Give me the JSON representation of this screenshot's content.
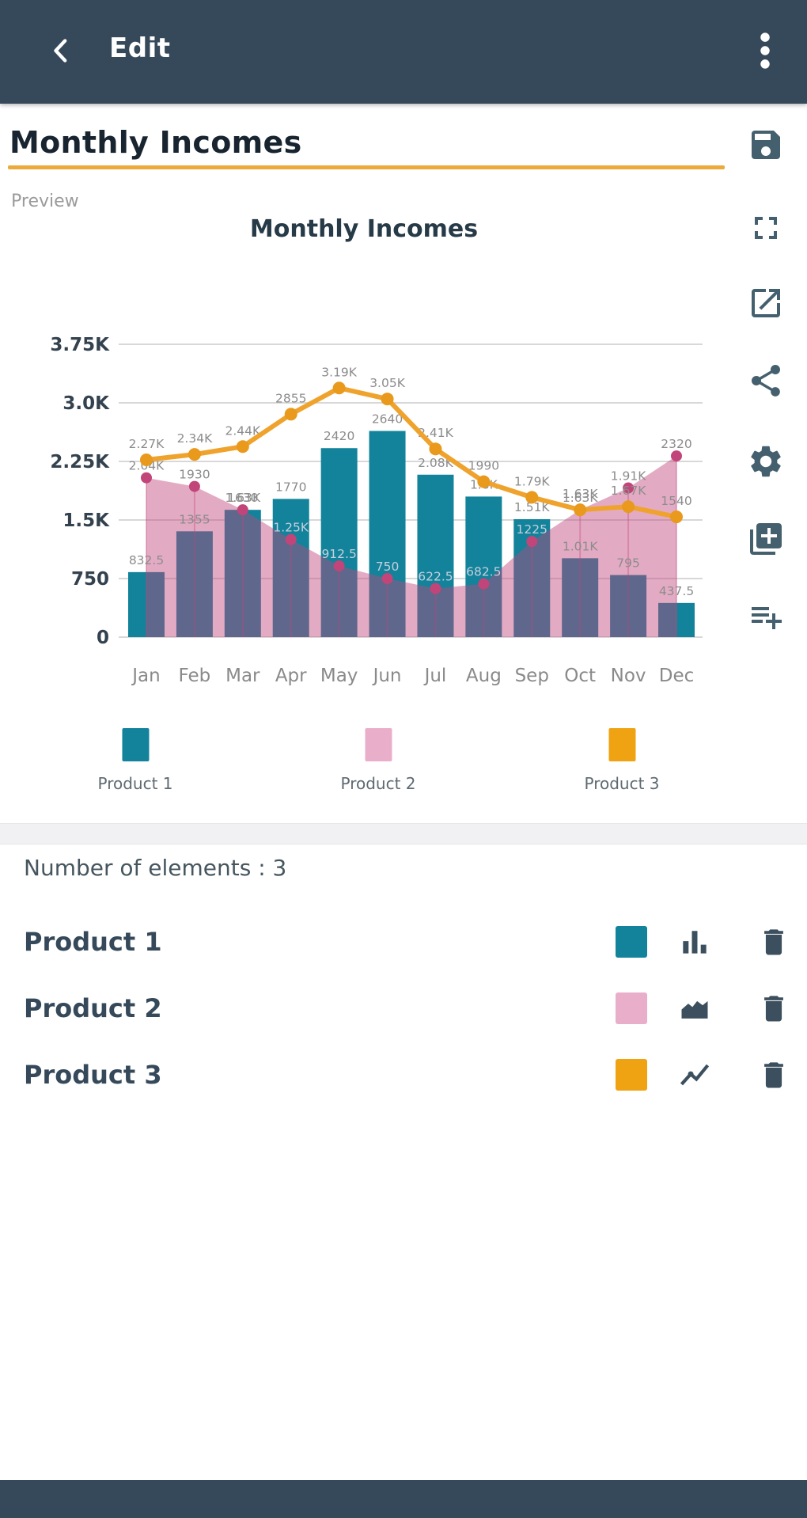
{
  "app_bar": {
    "title": "Edit"
  },
  "title_field": {
    "value": "Monthly Incomes",
    "underline_color": "#EBAA3A"
  },
  "preview_label": "Preview",
  "side_toolbar": {
    "items": [
      {
        "name": "save-button",
        "icon": "save-icon"
      },
      {
        "name": "fullscreen-button",
        "icon": "fullscreen-icon"
      },
      {
        "name": "export-button",
        "icon": "open-in-new-icon"
      },
      {
        "name": "share-button",
        "icon": "share-icon"
      },
      {
        "name": "settings-button",
        "icon": "settings-icon"
      },
      {
        "name": "add-chart-button",
        "icon": "library-add-icon"
      },
      {
        "name": "add-data-button",
        "icon": "playlist-add-icon"
      }
    ]
  },
  "chart_data": {
    "type": "combo",
    "title": "Monthly Incomes",
    "categories": [
      "Jan",
      "Feb",
      "Mar",
      "Apr",
      "May",
      "Jun",
      "Jul",
      "Aug",
      "Sep",
      "Oct",
      "Nov",
      "Dec"
    ],
    "ylim": [
      0,
      3750
    ],
    "grid": true,
    "legend_position": "bottom",
    "y_ticks": [
      {
        "value": 0,
        "label": "0"
      },
      {
        "value": 750,
        "label": "750"
      },
      {
        "value": 1500,
        "label": "1.5K"
      },
      {
        "value": 2250,
        "label": "2.25K"
      },
      {
        "value": 3000,
        "label": "3.0K"
      },
      {
        "value": 3750,
        "label": "3.75K"
      }
    ],
    "series": [
      {
        "name": "Product 1",
        "type": "bar",
        "color": "#12839B",
        "swatch": "#12839B",
        "values": [
          832.5,
          1355,
          1630,
          1770,
          2420,
          2640,
          2080,
          1800,
          1510,
          1010,
          795,
          437.5
        ],
        "labels": [
          "832.5",
          "1355",
          "1630",
          "1770",
          "2420",
          "2640",
          "2.08K",
          "1.8K",
          "1.51K",
          "1.01K",
          "795",
          "437.5"
        ]
      },
      {
        "name": "Product 2",
        "type": "area",
        "color": "#C14579",
        "fill": "rgba(193,69,121,0.45)",
        "swatch": "#E9AFCA",
        "values": [
          2040,
          1930,
          1630,
          1250,
          912.5,
          750,
          622.5,
          682.5,
          1225,
          1630,
          1910,
          2320
        ],
        "labels": [
          "2.04K",
          "1930",
          "1.63K",
          "1.25K",
          "912.5",
          "750",
          "622.5",
          "682.5",
          "1225",
          "1.63K",
          "1.91K",
          "2320"
        ]
      },
      {
        "name": "Product 3",
        "type": "line",
        "color": "#EFA32D",
        "dot_color": "#E9991B",
        "swatch": "#F0A312",
        "values": [
          2270,
          2340,
          2440,
          2855,
          3190,
          3050,
          2410,
          1990,
          1790,
          1630,
          1670,
          1540
        ],
        "labels": [
          "2.27K",
          "2.34K",
          "2.44K",
          "2855",
          "3.19K",
          "3.05K",
          "2.41K",
          "1990",
          "1.79K",
          "1.63K",
          "1.67K",
          "1540"
        ]
      }
    ]
  },
  "elements_panel": {
    "header": "Number of elements : 3",
    "rows": [
      {
        "name": "Product 1",
        "swatch": "#12839B",
        "type_icon": "bar-chart-icon"
      },
      {
        "name": "Product 2",
        "swatch": "#E9AFCA",
        "type_icon": "area-chart-icon"
      },
      {
        "name": "Product 3",
        "swatch": "#F0A312",
        "type_icon": "line-chart-icon"
      }
    ]
  },
  "colors": {
    "app_bar": "#36495A",
    "toolbar_icon": "#44606E",
    "row_icon": "#3C4F5E",
    "grid_line": "#CBCBCB",
    "axis_label": "#33424E",
    "data_label": "#8C8C8C",
    "data_label_light": "#C6CFDC"
  }
}
